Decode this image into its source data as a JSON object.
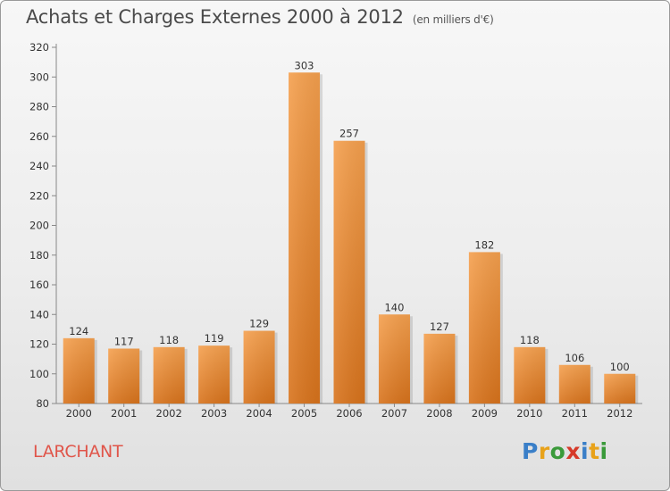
{
  "chart_data": {
    "type": "bar",
    "title": "Achats et Charges Externes 2000 à 2012",
    "subtitle": "(en milliers d'€)",
    "categories": [
      "2000",
      "2001",
      "2002",
      "2003",
      "2004",
      "2005",
      "2006",
      "2007",
      "2008",
      "2009",
      "2010",
      "2011",
      "2012"
    ],
    "values": [
      124,
      117,
      118,
      119,
      129,
      303,
      257,
      140,
      127,
      182,
      118,
      106,
      100
    ],
    "ylim": [
      80,
      320
    ],
    "yticks": [
      80,
      100,
      120,
      140,
      160,
      180,
      200,
      220,
      240,
      260,
      280,
      300,
      320
    ],
    "grid": false,
    "bar_color": "#f0913a"
  },
  "footer": {
    "town": "LARCHANT",
    "logo_letters": [
      {
        "ch": "P",
        "color": "#3a7fc8"
      },
      {
        "ch": "r",
        "color": "#e8a21a"
      },
      {
        "ch": "o",
        "color": "#3a9a3a"
      },
      {
        "ch": "x",
        "color": "#d63a2a"
      },
      {
        "ch": "i",
        "color": "#3a7fc8"
      },
      {
        "ch": "t",
        "color": "#e8a21a"
      },
      {
        "ch": "i",
        "color": "#3a9a3a"
      }
    ]
  }
}
